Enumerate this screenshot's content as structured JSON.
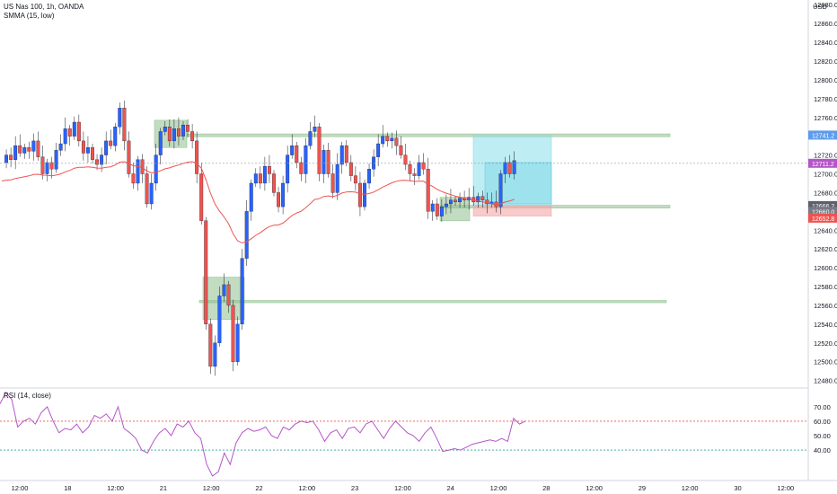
{
  "header": {
    "symbol_line": "US Nas 100, 1h, OANDA",
    "indicator_line": "SMMA (15, low)",
    "currency": "USD"
  },
  "rsi_panel": {
    "label": "RSI (14, close)",
    "ticks": [
      "70.00",
      "60.00",
      "50.00",
      "40.00"
    ],
    "upper_level": 60,
    "lower_level": 40
  },
  "chart_data": {
    "type": "candlestick",
    "symbol": "US Nas 100",
    "timeframe": "1h",
    "source": "OANDA",
    "price_axis": {
      "ticks": [
        "12880.0",
        "12860.0",
        "12840.0",
        "12820.0",
        "12800.0",
        "12780.0",
        "12760.0",
        "12740.0",
        "12720.0",
        "12700.0",
        "12680.0",
        "12660.0",
        "12640.0",
        "12620.0",
        "12600.0",
        "12580.0",
        "12560.0",
        "12540.0",
        "12520.0",
        "12500.0",
        "12480.0"
      ],
      "range": [
        12472,
        12885
      ]
    },
    "time_axis": [
      "12:00",
      "18",
      "12:00",
      "21",
      "12:00",
      "22",
      "12:00",
      "23",
      "12:00",
      "24",
      "12:00",
      "28",
      "12:00",
      "29",
      "12:00",
      "30",
      "12:00"
    ],
    "price_tags": [
      {
        "value": "12741.2",
        "color": "#5d9cec"
      },
      {
        "value": "12711.2",
        "color": "#b455c8"
      },
      {
        "value": "12666.2",
        "color": "#5d606b"
      },
      {
        "value": "12660.0",
        "color": "#787b86"
      },
      {
        "value": "12652.8",
        "color": "#ef5350"
      }
    ],
    "levels": [
      12741,
      12665,
      12564
    ],
    "current_price": 12711.2,
    "colors": {
      "up": "#2962ff",
      "down": "#ef5350",
      "smma": "#ef5350",
      "rsi": "#b455c8",
      "zone": "#8fbf8f",
      "target": "#7fdbea",
      "stop": "#f4a6a6"
    },
    "rsi_values": [
      72,
      80,
      75,
      56,
      60,
      62,
      58,
      66,
      70,
      60,
      52,
      55,
      54,
      58,
      52,
      56,
      64,
      62,
      65,
      60,
      70,
      55,
      52,
      48,
      40,
      38,
      46,
      52,
      55,
      50,
      58,
      56,
      60,
      52,
      48,
      30,
      22,
      25,
      38,
      30,
      45,
      52,
      55,
      53,
      54,
      56,
      50,
      48,
      56,
      54,
      58,
      60,
      59,
      60,
      54,
      46,
      52,
      54,
      48,
      55,
      56,
      52,
      58,
      60,
      54,
      48,
      55,
      60,
      56,
      52,
      50,
      46,
      52,
      56,
      48,
      39,
      40,
      41,
      40,
      42,
      44,
      45,
      46,
      47,
      46,
      48,
      46,
      62,
      58,
      60
    ]
  }
}
